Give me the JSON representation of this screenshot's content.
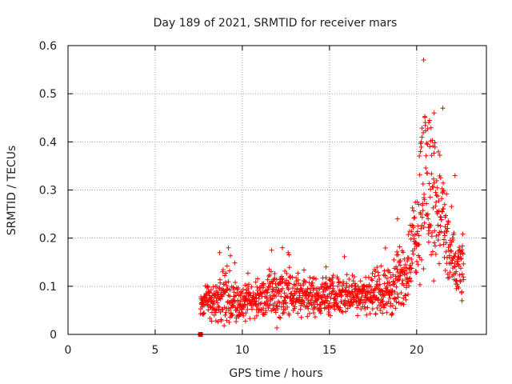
{
  "chart_data": {
    "type": "scatter",
    "title": "Day 189 of 2021, SRMTID for receiver mars",
    "xlabel": "GPS time / hours",
    "ylabel": "SRMTID / TECUs",
    "xlim": [
      0,
      24
    ],
    "ylim": [
      0,
      0.6
    ],
    "x_ticks": [
      0,
      5,
      10,
      15,
      20
    ],
    "x_tick_labels": [
      "0",
      "5",
      "10",
      "15",
      "20"
    ],
    "y_ticks": [
      0,
      0.1,
      0.2,
      0.3,
      0.4,
      0.5,
      0.6
    ],
    "y_tick_labels": [
      "0",
      "0.1",
      "0.2",
      "0.3",
      "0.4",
      "0.5",
      "0.6"
    ],
    "grid": true,
    "marker": "plus",
    "color": "#ff0000",
    "square_marker": {
      "x": 7.6,
      "y": 0.0
    },
    "series": [
      {
        "name": "SRMTID",
        "x_range": [
          7.6,
          22.7
        ],
        "profile": [
          {
            "x": 7.6,
            "level": 0.065,
            "spread": 0.02
          },
          {
            "x": 8.5,
            "level": 0.07,
            "spread": 0.03
          },
          {
            "x": 9.0,
            "level": 0.08,
            "spread": 0.05
          },
          {
            "x": 10.0,
            "level": 0.06,
            "spread": 0.025
          },
          {
            "x": 11.0,
            "level": 0.075,
            "spread": 0.03
          },
          {
            "x": 12.3,
            "level": 0.09,
            "spread": 0.05
          },
          {
            "x": 13.5,
            "level": 0.08,
            "spread": 0.03
          },
          {
            "x": 15.0,
            "level": 0.08,
            "spread": 0.03
          },
          {
            "x": 16.5,
            "level": 0.085,
            "spread": 0.03
          },
          {
            "x": 18.0,
            "level": 0.085,
            "spread": 0.03
          },
          {
            "x": 18.8,
            "level": 0.1,
            "spread": 0.05
          },
          {
            "x": 19.5,
            "level": 0.14,
            "spread": 0.05
          },
          {
            "x": 20.0,
            "level": 0.22,
            "spread": 0.08
          },
          {
            "x": 20.4,
            "level": 0.33,
            "spread": 0.14
          },
          {
            "x": 20.8,
            "level": 0.3,
            "spread": 0.13
          },
          {
            "x": 21.3,
            "level": 0.27,
            "spread": 0.1
          },
          {
            "x": 21.8,
            "level": 0.18,
            "spread": 0.07
          },
          {
            "x": 22.2,
            "level": 0.13,
            "spread": 0.05
          },
          {
            "x": 22.7,
            "level": 0.14,
            "spread": 0.04
          }
        ],
        "highlights": [
          {
            "x": 8.7,
            "y": 0.17
          },
          {
            "x": 9.2,
            "y": 0.18
          },
          {
            "x": 12.3,
            "y": 0.18
          },
          {
            "x": 14.8,
            "y": 0.14
          },
          {
            "x": 18.9,
            "y": 0.24
          },
          {
            "x": 20.4,
            "y": 0.57
          },
          {
            "x": 20.3,
            "y": 0.41
          },
          {
            "x": 20.7,
            "y": 0.44
          },
          {
            "x": 21.0,
            "y": 0.46
          },
          {
            "x": 21.5,
            "y": 0.47
          },
          {
            "x": 22.2,
            "y": 0.33
          },
          {
            "x": 22.6,
            "y": 0.07
          }
        ]
      }
    ]
  }
}
